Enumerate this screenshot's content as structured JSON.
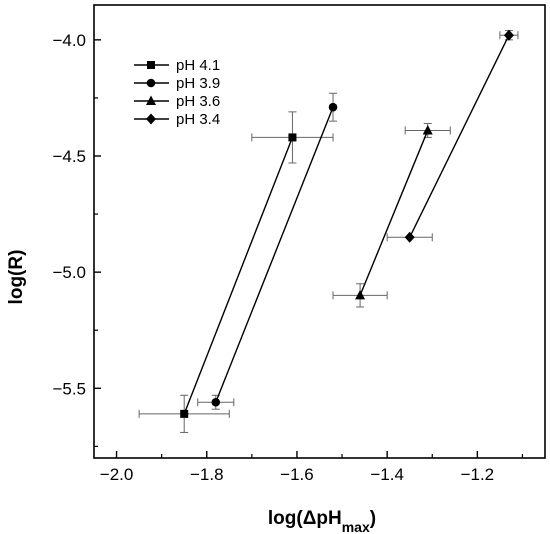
{
  "chart_data": {
    "type": "scatter",
    "xlabel": "log(ΔpH",
    "xlabel_subscript": "max",
    "xlabel_close": ")",
    "ylabel": "log(R)",
    "xlim": [
      -2.05,
      -1.05
    ],
    "ylim": [
      -5.8,
      -3.85
    ],
    "x_ticks": [
      -2.0,
      -1.8,
      -1.6,
      -1.4,
      -1.2
    ],
    "x_tick_labels": [
      "−2.0",
      "−1.8",
      "−1.6",
      "−1.4",
      "−1.2"
    ],
    "y_ticks": [
      -5.5,
      -5.0,
      -4.5,
      -4.0
    ],
    "y_tick_labels": [
      "−5.5",
      "−5.0",
      "−4.5",
      "−4.0"
    ],
    "grid": false,
    "legend_position": "top-left",
    "series": [
      {
        "name": "pH 4.1",
        "marker": "square",
        "points": [
          {
            "x": -1.85,
            "y": -5.61,
            "xerr": 0.1,
            "yerr": 0.08
          },
          {
            "x": -1.61,
            "y": -4.42,
            "xerr": 0.09,
            "yerr": 0.11
          }
        ]
      },
      {
        "name": "pH 3.9",
        "marker": "circle",
        "points": [
          {
            "x": -1.78,
            "y": -5.56,
            "xerr": 0.04,
            "yerr": 0.03
          },
          {
            "x": -1.52,
            "y": -4.29,
            "xerr": 0.0,
            "yerr": 0.06
          }
        ]
      },
      {
        "name": "pH 3.6",
        "marker": "triangle",
        "points": [
          {
            "x": -1.46,
            "y": -5.1,
            "xerr": 0.06,
            "yerr": 0.05
          },
          {
            "x": -1.31,
            "y": -4.39,
            "xerr": 0.05,
            "yerr": 0.03
          }
        ]
      },
      {
        "name": "pH 3.4",
        "marker": "diamond",
        "points": [
          {
            "x": -1.35,
            "y": -4.85,
            "xerr": 0.05,
            "yerr": 0.0
          },
          {
            "x": -1.13,
            "y": -3.98,
            "xerr": 0.02,
            "yerr": 0.02
          }
        ]
      }
    ]
  }
}
